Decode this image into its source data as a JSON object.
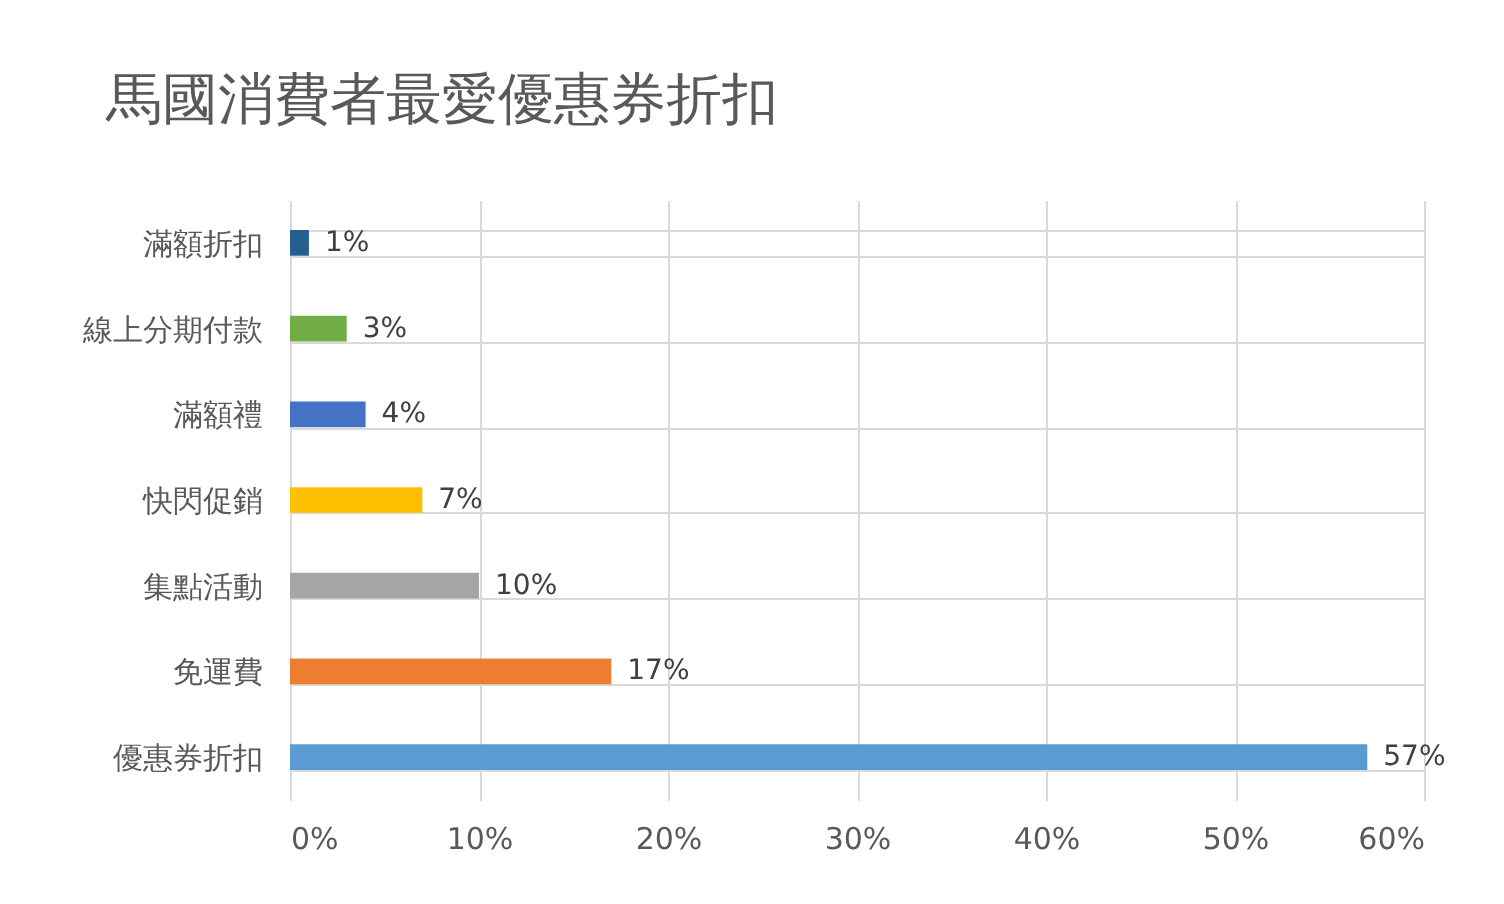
{
  "chart_data": {
    "type": "bar",
    "orientation": "horizontal",
    "title": "馬國消費者最愛優惠券折扣",
    "categories": [
      "滿額折扣",
      "線上分期付款",
      "滿額禮",
      "快閃促銷",
      "集點活動",
      "免運費",
      "優惠券折扣"
    ],
    "values": [
      1,
      3,
      4,
      7,
      10,
      17,
      57
    ],
    "colors": [
      "#255e91",
      "#70ad47",
      "#4472c4",
      "#ffc000",
      "#a5a5a5",
      "#ed7d31",
      "#5b9bd5"
    ],
    "value_labels": [
      "1%",
      "3%",
      "4%",
      "7%",
      "10%",
      "17%",
      "57%"
    ],
    "xlim": [
      0,
      60
    ],
    "xticks": [
      {
        "value": 0,
        "label": "0%"
      },
      {
        "value": 10,
        "label": "10%"
      },
      {
        "value": 20,
        "label": "20%"
      },
      {
        "value": 30,
        "label": "30%"
      },
      {
        "value": 40,
        "label": "40%"
      },
      {
        "value": 50,
        "label": "50%"
      },
      {
        "value": 60,
        "label": "60%"
      }
    ],
    "grid": true
  }
}
